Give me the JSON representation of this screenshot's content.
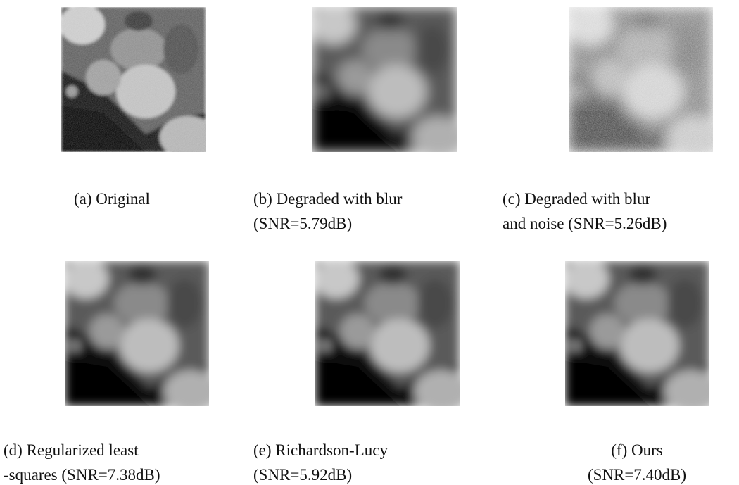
{
  "figure": {
    "panels": [
      {
        "caption": [
          "(a) Original"
        ]
      },
      {
        "caption": [
          "(b) Degraded with blur",
          "(SNR=5.79dB)"
        ]
      },
      {
        "caption": [
          "(c) Degraded with blur",
          "and noise (SNR=5.26dB)"
        ]
      },
      {
        "caption": [
          "(d) Regularized least",
          "-squares (SNR=7.38dB)"
        ]
      },
      {
        "caption": [
          "(e) Richardson-Lucy",
          "(SNR=5.92dB)"
        ]
      },
      {
        "caption": [
          "(f) Ours",
          "(SNR=7.40dB)"
        ]
      }
    ]
  }
}
